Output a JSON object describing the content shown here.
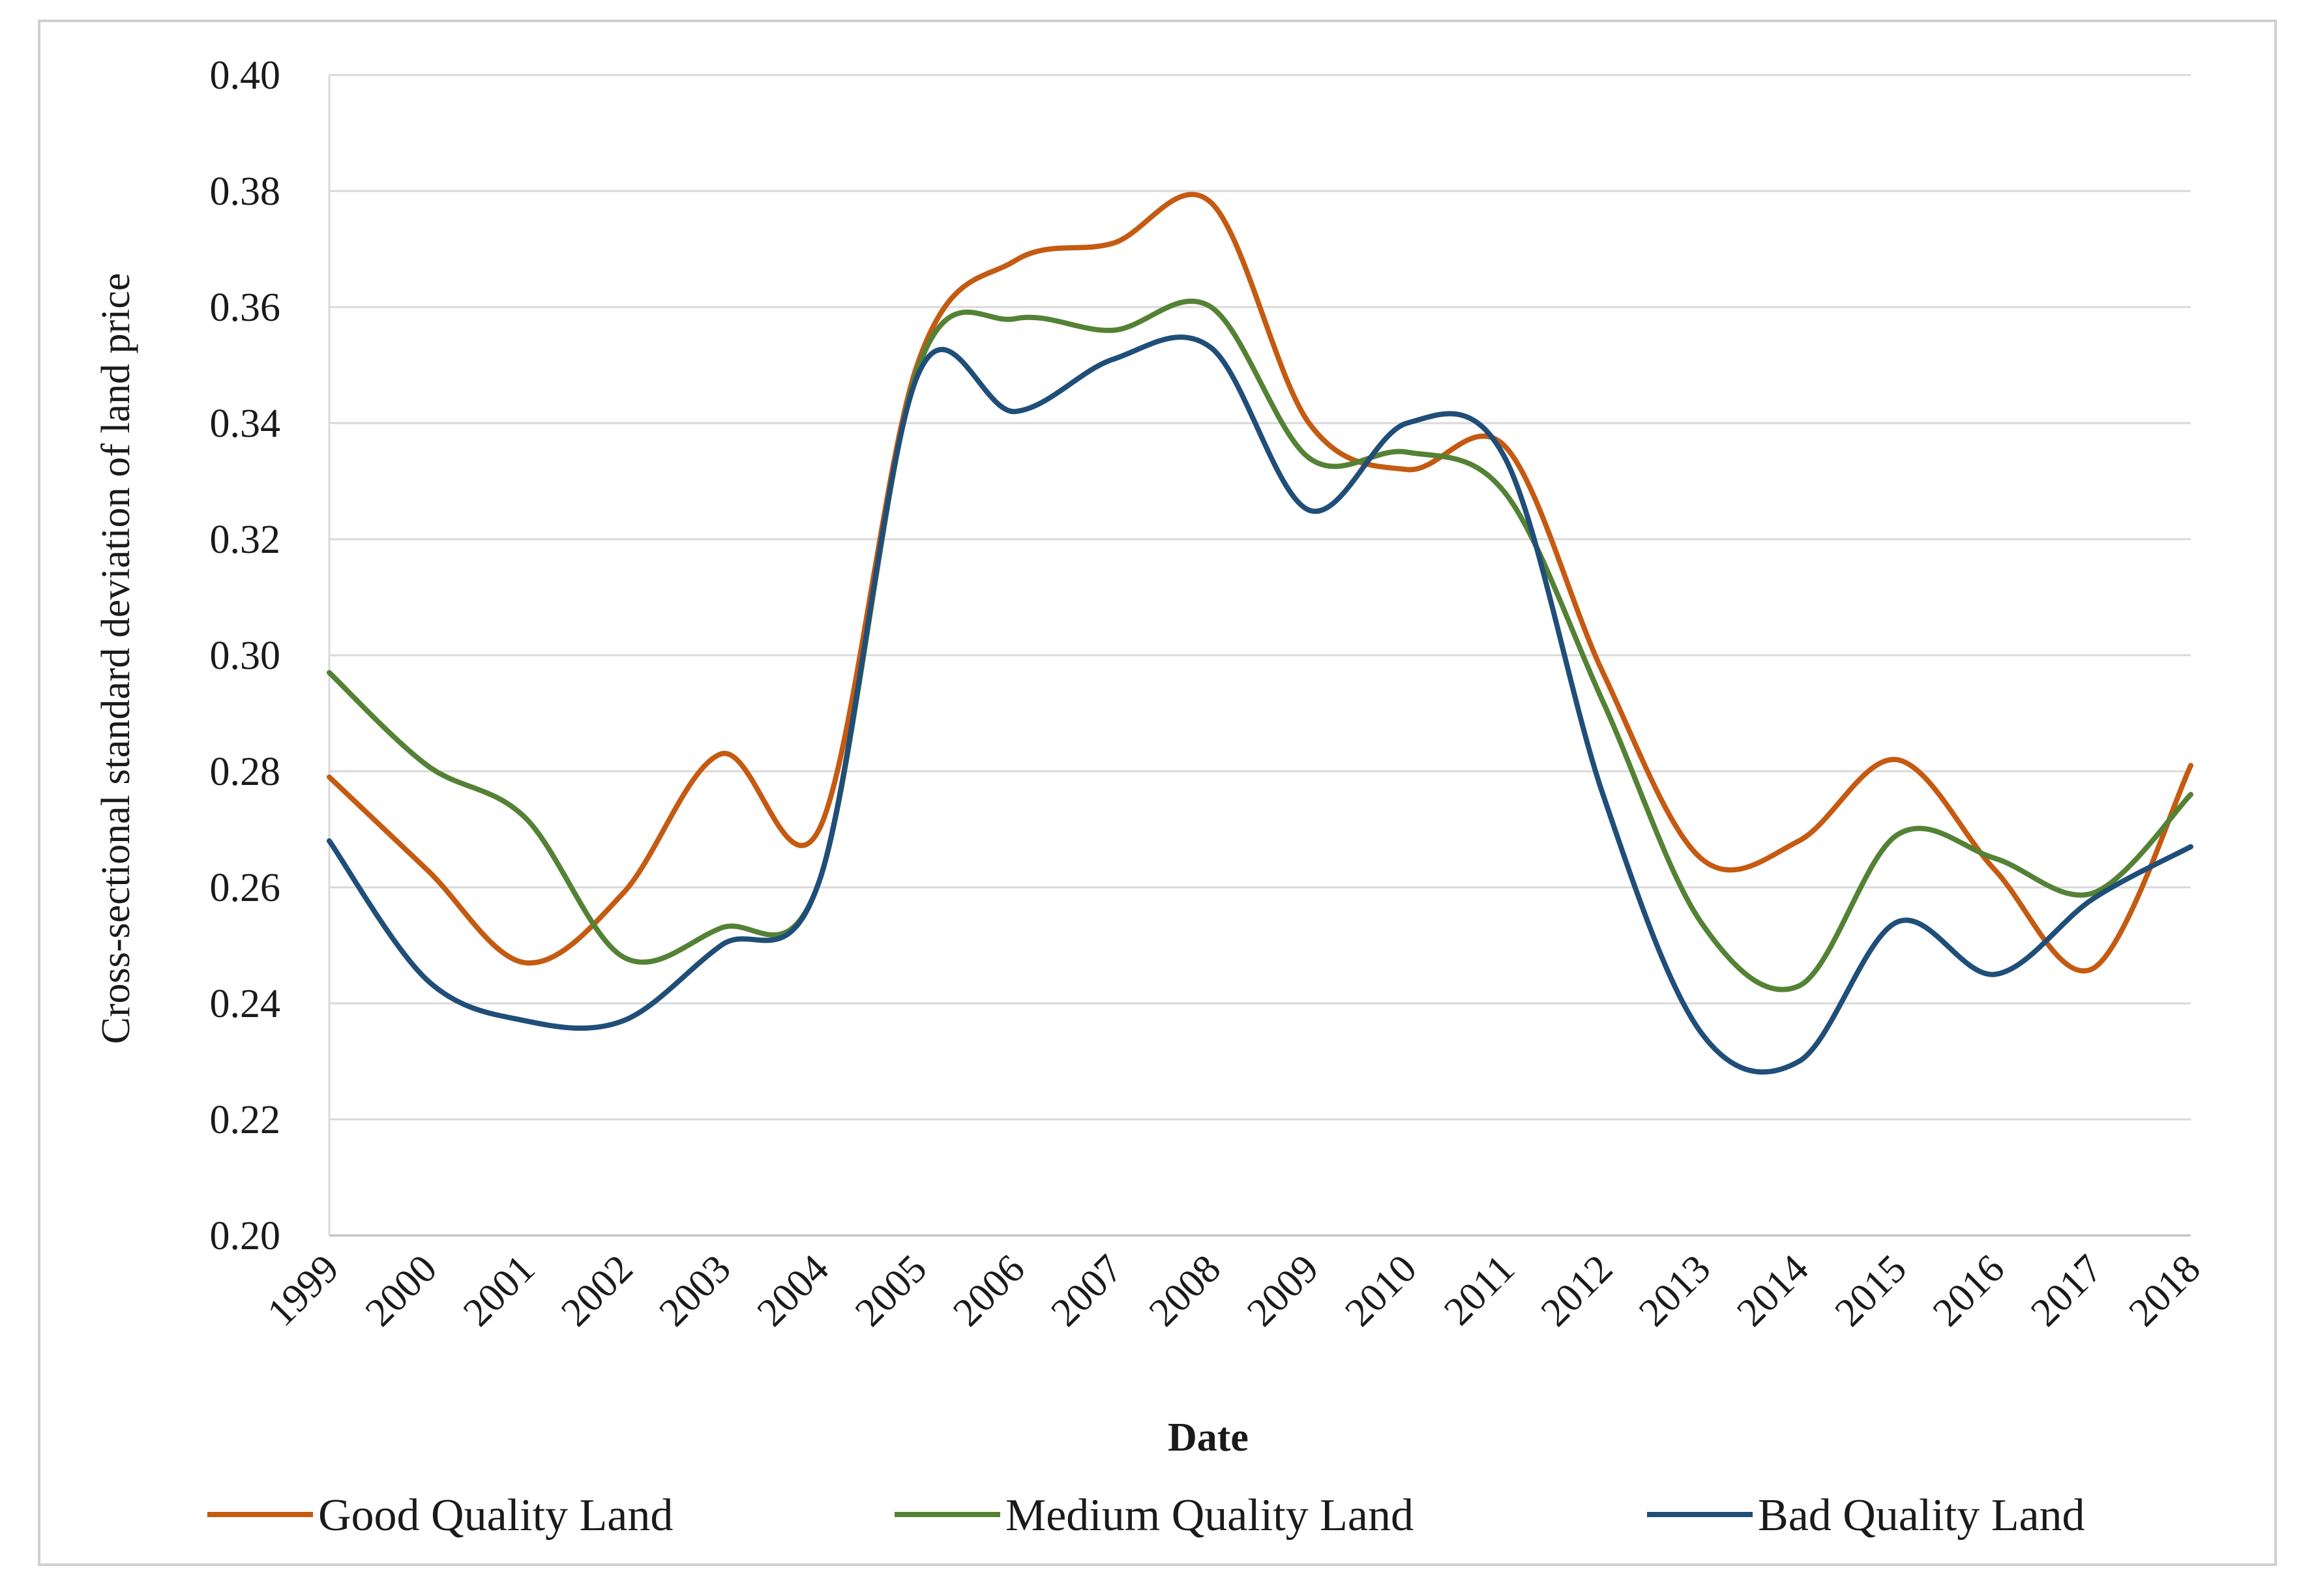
{
  "chart_data": {
    "type": "line",
    "title": "",
    "xlabel": "Date",
    "ylabel": "Cross-sectional standard deviation of land price",
    "categories": [
      "1999",
      "2000",
      "2001",
      "2002",
      "2003",
      "2004",
      "2005",
      "2006",
      "2007",
      "2008",
      "2009",
      "2010",
      "2011",
      "2012",
      "2013",
      "2014",
      "2015",
      "2016",
      "2017",
      "2018"
    ],
    "ylim": [
      0.2,
      0.4
    ],
    "yticks": [
      0.2,
      0.22,
      0.24,
      0.26,
      0.28,
      0.3,
      0.32,
      0.34,
      0.36,
      0.38,
      0.4
    ],
    "ytick_labels": [
      "0.20",
      "0.22",
      "0.24",
      "0.26",
      "0.28",
      "0.30",
      "0.32",
      "0.34",
      "0.36",
      "0.38",
      "0.40"
    ],
    "grid": true,
    "legend_position": "bottom",
    "series": [
      {
        "name": "Good Quality Land",
        "color": "#c55a11",
        "values": [
          0.279,
          0.263,
          0.247,
          0.259,
          0.283,
          0.27,
          0.35,
          0.368,
          0.371,
          0.378,
          0.34,
          0.332,
          0.336,
          0.297,
          0.265,
          0.268,
          0.282,
          0.263,
          0.246,
          0.281
        ]
      },
      {
        "name": "Medium Quality Land",
        "color": "#548235",
        "values": [
          0.297,
          0.281,
          0.272,
          0.248,
          0.253,
          0.261,
          0.349,
          0.358,
          0.356,
          0.36,
          0.334,
          0.335,
          0.328,
          0.292,
          0.254,
          0.243,
          0.269,
          0.265,
          0.259,
          0.276
        ]
      },
      {
        "name": "Bad Quality Land",
        "color": "#1f4e79",
        "values": [
          0.268,
          0.244,
          0.237,
          0.237,
          0.25,
          0.261,
          0.348,
          0.342,
          0.351,
          0.353,
          0.325,
          0.34,
          0.334,
          0.276,
          0.235,
          0.23,
          0.254,
          0.245,
          0.258,
          0.267
        ]
      }
    ]
  }
}
